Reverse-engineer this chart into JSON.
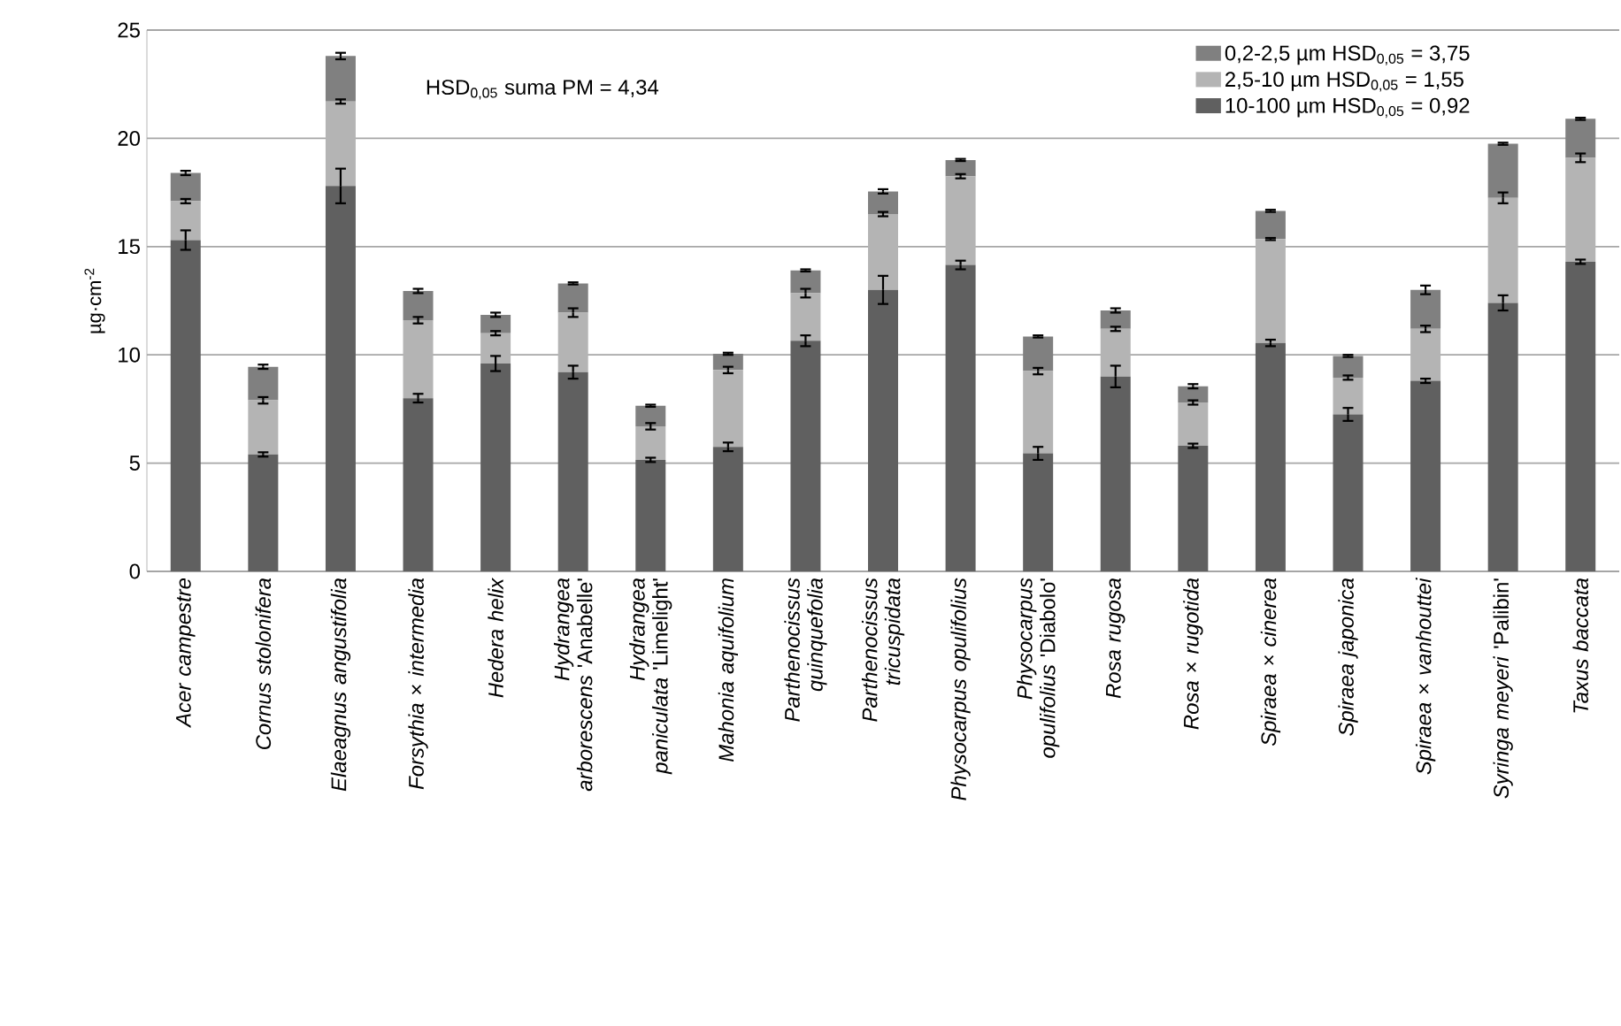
{
  "chart_data": {
    "type": "bar",
    "stacked": true,
    "ylabel": "µg·cm$^{-2}$",
    "categories": [
      "*Acer campestre*",
      "*Cornus stolonifera*",
      "*Elaeagnus angustifolia*",
      "*Forsythia* × *intermedia*",
      "*Hedera helix*",
      "*Hydrangea arborescens* 'Anabelle'",
      "*Hydrangea paniculata* 'Limelight'",
      "*Mahonia aquifolium*",
      "*Parthenocissus quinquefolia*",
      "*Parthenocissus tricuspidata*",
      "*Physocarpus opulifolius*",
      "*Physocarpus opulifolius* 'Diabolo'",
      "*Rosa rugosa*",
      "*Rosa* × *rugotida*",
      "*Spiraea* × *cinerea*",
      "*Spiraea japonica*",
      "*Spiraea* × *vanhouttei*",
      "*Syringa meyeri* 'Palibin'",
      "*Taxus baccata*"
    ],
    "series": [
      {
        "name": "10-100 µm HSD$_{0,05}$ = 0,92",
        "color": "#606060",
        "values": [
          15.3,
          5.4,
          17.8,
          8.0,
          9.6,
          9.2,
          5.15,
          5.75,
          10.65,
          13.0,
          14.15,
          5.45,
          9.0,
          5.8,
          10.55,
          7.25,
          8.8,
          12.4,
          14.3
        ],
        "errors": [
          0.45,
          0.1,
          0.8,
          0.2,
          0.35,
          0.3,
          0.1,
          0.2,
          0.25,
          0.65,
          0.2,
          0.3,
          0.5,
          0.1,
          0.15,
          0.3,
          0.1,
          0.35,
          0.1
        ]
      },
      {
        "name": "2,5-10 µm HSD$_{0,05}$ = 1,55",
        "color": "#b4b4b4",
        "values": [
          1.8,
          2.5,
          3.9,
          3.6,
          1.4,
          2.75,
          1.55,
          3.55,
          2.2,
          3.5,
          4.1,
          3.8,
          2.2,
          2.0,
          4.8,
          1.7,
          2.4,
          4.85,
          4.8
        ],
        "errors": [
          0.1,
          0.15,
          0.1,
          0.15,
          0.1,
          0.2,
          0.15,
          0.15,
          0.2,
          0.1,
          0.1,
          0.15,
          0.1,
          0.1,
          0.05,
          0.1,
          0.15,
          0.25,
          0.2
        ]
      },
      {
        "name": "0,2-2,5 µm HSD$_{0,05}$ = 3,75",
        "color": "#808080",
        "values": [
          1.3,
          1.55,
          2.1,
          1.35,
          0.85,
          1.35,
          0.95,
          0.75,
          1.05,
          1.05,
          0.75,
          1.6,
          0.85,
          0.75,
          1.3,
          1.0,
          1.8,
          2.5,
          1.8
        ],
        "errors": [
          0.1,
          0.1,
          0.15,
          0.1,
          0.1,
          0.05,
          0.05,
          0.05,
          0.05,
          0.1,
          0.05,
          0.05,
          0.1,
          0.1,
          0.05,
          0.05,
          0.2,
          0.05,
          0.05
        ]
      }
    ],
    "ylim": [
      0,
      25
    ],
    "yticks": [
      0,
      5,
      10,
      15,
      20,
      25
    ],
    "grid": "y",
    "legend": "top right",
    "annotations": [
      "HSD$_{0,05}$ suma PM = 4,34"
    ]
  }
}
